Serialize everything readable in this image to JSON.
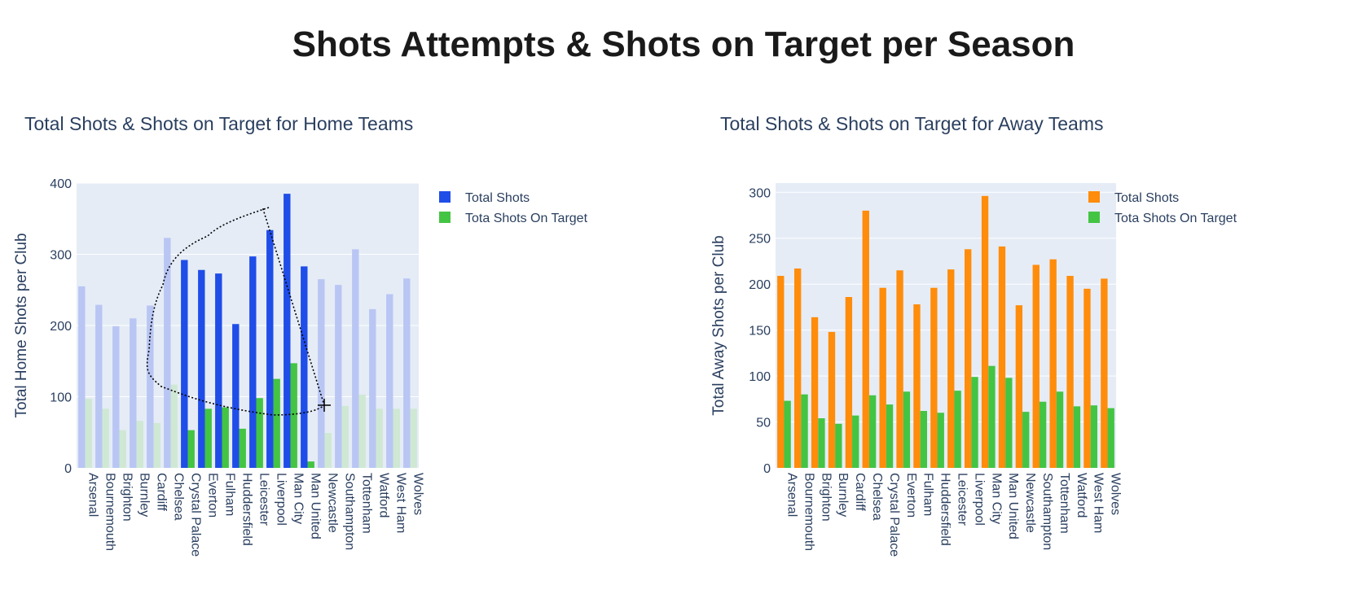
{
  "page": {
    "title": "Shots Attempts & Shots on Target per Season"
  },
  "chart_data": [
    {
      "type": "bar",
      "title": "Total Shots & Shots on Target for Home Teams",
      "xlabel": "",
      "ylabel": "Total Home Shots per Club",
      "ylim": [
        0,
        400
      ],
      "yticks": [
        0,
        100,
        200,
        300,
        400
      ],
      "grid": true,
      "legend_position": "top-right",
      "categories": [
        "Arsenal",
        "Bournemouth",
        "Brighton",
        "Burnley",
        "Cardiff",
        "Chelsea",
        "Crystal Palace",
        "Everton",
        "Fulham",
        "Huddersfield",
        "Leicester",
        "Liverpool",
        "Man City",
        "Man United",
        "Newcastle",
        "Southampton",
        "Tottenham",
        "Watford",
        "West Ham",
        "Wolves"
      ],
      "series": [
        {
          "name": "Total Shots",
          "color": "#1f4de8",
          "dimmed_color": "#b9c6f4",
          "values": [
            255,
            229,
            199,
            210,
            228,
            323,
            292,
            278,
            273,
            202,
            297,
            334,
            385,
            283,
            265,
            257,
            307,
            223,
            244,
            266
          ]
        },
        {
          "name": "Tota Shots On Target",
          "color": "#44c443",
          "dimmed_color": "#cfe8d4",
          "values": [
            97,
            83,
            53,
            66,
            63,
            117,
            53,
            83,
            85,
            55,
            98,
            125,
            147,
            9,
            49,
            87,
            103,
            83,
            83,
            83
          ]
        }
      ],
      "selected_categories": [
        "Crystal Palace",
        "Everton",
        "Fulham",
        "Huddersfield",
        "Leicester",
        "Liverpool",
        "Man City",
        "Man United"
      ],
      "annotations": [
        "lasso-selection"
      ]
    },
    {
      "type": "bar",
      "title": "Total Shots & Shots on Target for Away Teams",
      "xlabel": "",
      "ylabel": "Total Away Shots per Club",
      "ylim": [
        0,
        310
      ],
      "yticks": [
        0,
        50,
        100,
        150,
        200,
        250,
        300
      ],
      "grid": true,
      "legend_position": "top-right",
      "categories": [
        "Arsenal",
        "Bournemouth",
        "Brighton",
        "Burnley",
        "Cardiff",
        "Chelsea",
        "Crystal Palace",
        "Everton",
        "Fulham",
        "Huddersfield",
        "Leicester",
        "Liverpool",
        "Man City",
        "Man United",
        "Newcastle",
        "Southampton",
        "Tottenham",
        "Watford",
        "West Ham",
        "Wolves"
      ],
      "series": [
        {
          "name": "Total Shots",
          "color": "#ff8c0a",
          "values": [
            209,
            217,
            164,
            148,
            186,
            280,
            196,
            215,
            178,
            196,
            216,
            238,
            296,
            241,
            177,
            221,
            227,
            209,
            195,
            206
          ]
        },
        {
          "name": "Tota Shots On Target",
          "color": "#44c443",
          "values": [
            73,
            80,
            54,
            48,
            57,
            79,
            69,
            83,
            62,
            60,
            84,
            99,
            111,
            98,
            61,
            72,
            83,
            67,
            68,
            65
          ]
        }
      ]
    }
  ]
}
